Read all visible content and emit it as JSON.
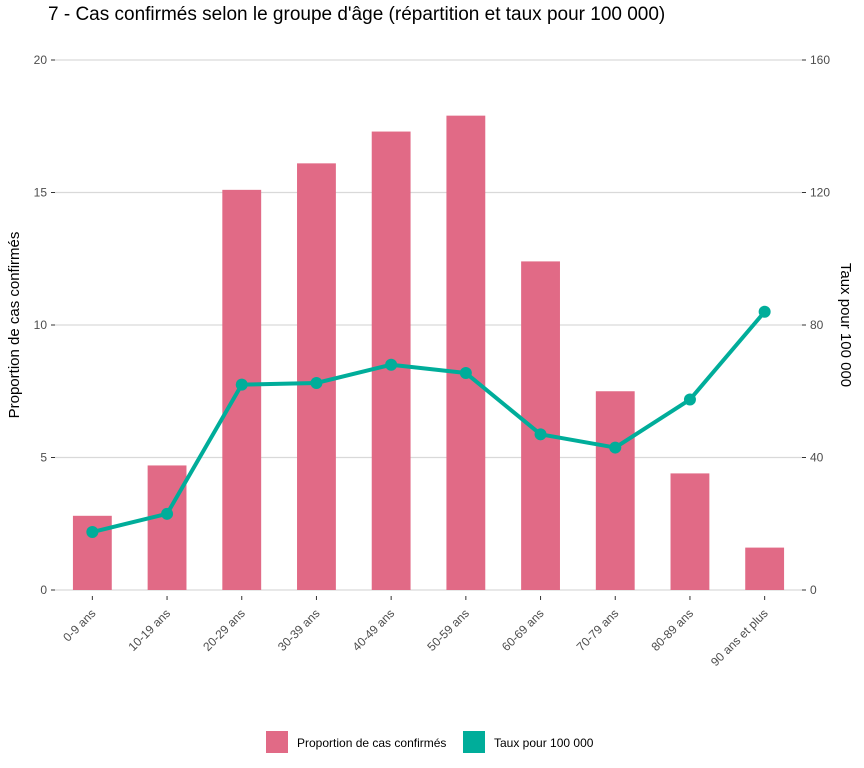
{
  "chart_data": {
    "type": "bar+line",
    "title": "7 - Cas confirmés selon le groupe d'âge (répartition et taux pour 100 000)",
    "categories": [
      "0-9 ans",
      "10-19 ans",
      "20-29 ans",
      "30-39 ans",
      "40-49 ans",
      "50-59 ans",
      "60-69 ans",
      "70-79 ans",
      "80-89 ans",
      "90 ans et plus"
    ],
    "series": [
      {
        "name": "Proportion de cas confirmés",
        "type": "bar",
        "axis": "left",
        "color": "#E16A86",
        "values": [
          2.8,
          4.7,
          15.1,
          16.1,
          17.3,
          17.9,
          12.4,
          7.5,
          4.4,
          1.6
        ]
      },
      {
        "name": "Taux pour 100 000",
        "type": "line",
        "axis": "right",
        "color": "#00AD9A",
        "values": [
          17.5,
          23,
          62,
          62.5,
          68,
          65.5,
          47,
          43,
          57.5,
          84
        ]
      }
    ],
    "ylabel": "Proportion de cas confirmés",
    "y2label": "Taux pour 100 000",
    "ylim": [
      0,
      20
    ],
    "y2lim": [
      0,
      160
    ],
    "yticks": [
      0,
      5,
      10,
      15,
      20
    ],
    "y2ticks": [
      0,
      40,
      80,
      120,
      160
    ],
    "grid": true,
    "legend_position": "bottom"
  }
}
